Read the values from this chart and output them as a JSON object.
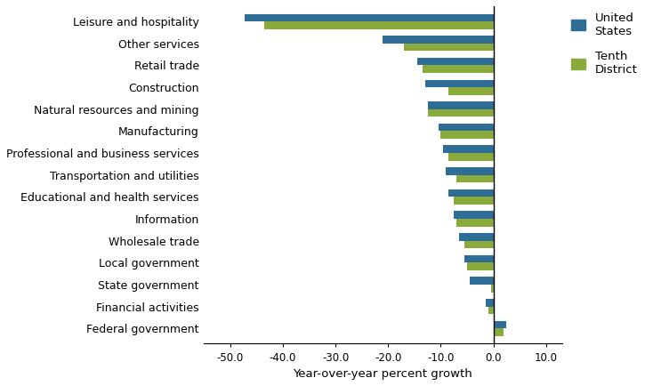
{
  "categories": [
    "Federal government",
    "Financial activities",
    "State government",
    "Local government",
    "Wholesale trade",
    "Information",
    "Educational and health services",
    "Transportation and utilities",
    "Professional and business services",
    "Manufacturing",
    "Natural resources and mining",
    "Construction",
    "Retail trade",
    "Other services",
    "Leisure and hospitality"
  ],
  "us_values": [
    2.5,
    -1.5,
    -4.5,
    -5.5,
    -6.5,
    -7.5,
    -8.5,
    -9.0,
    -9.5,
    -10.5,
    -12.5,
    -13.0,
    -14.5,
    -21.0,
    -47.2
  ],
  "tenth_values": [
    2.0,
    -1.0,
    -0.5,
    -5.0,
    -5.5,
    -7.0,
    -7.5,
    -7.0,
    -8.5,
    -10.0,
    -12.5,
    -8.5,
    -13.5,
    -17.0,
    -43.5
  ],
  "us_color": "#2e6d96",
  "tenth_color": "#8aaa3c",
  "xlabel": "Year-over-year percent growth",
  "xlim": [
    -55,
    13
  ],
  "xticks": [
    -50.0,
    -40.0,
    -30.0,
    -20.0,
    -10.0,
    0.0,
    10.0
  ],
  "bar_height": 0.35,
  "legend_us": "United\nStates",
  "legend_tenth": "Tenth\nDistrict"
}
